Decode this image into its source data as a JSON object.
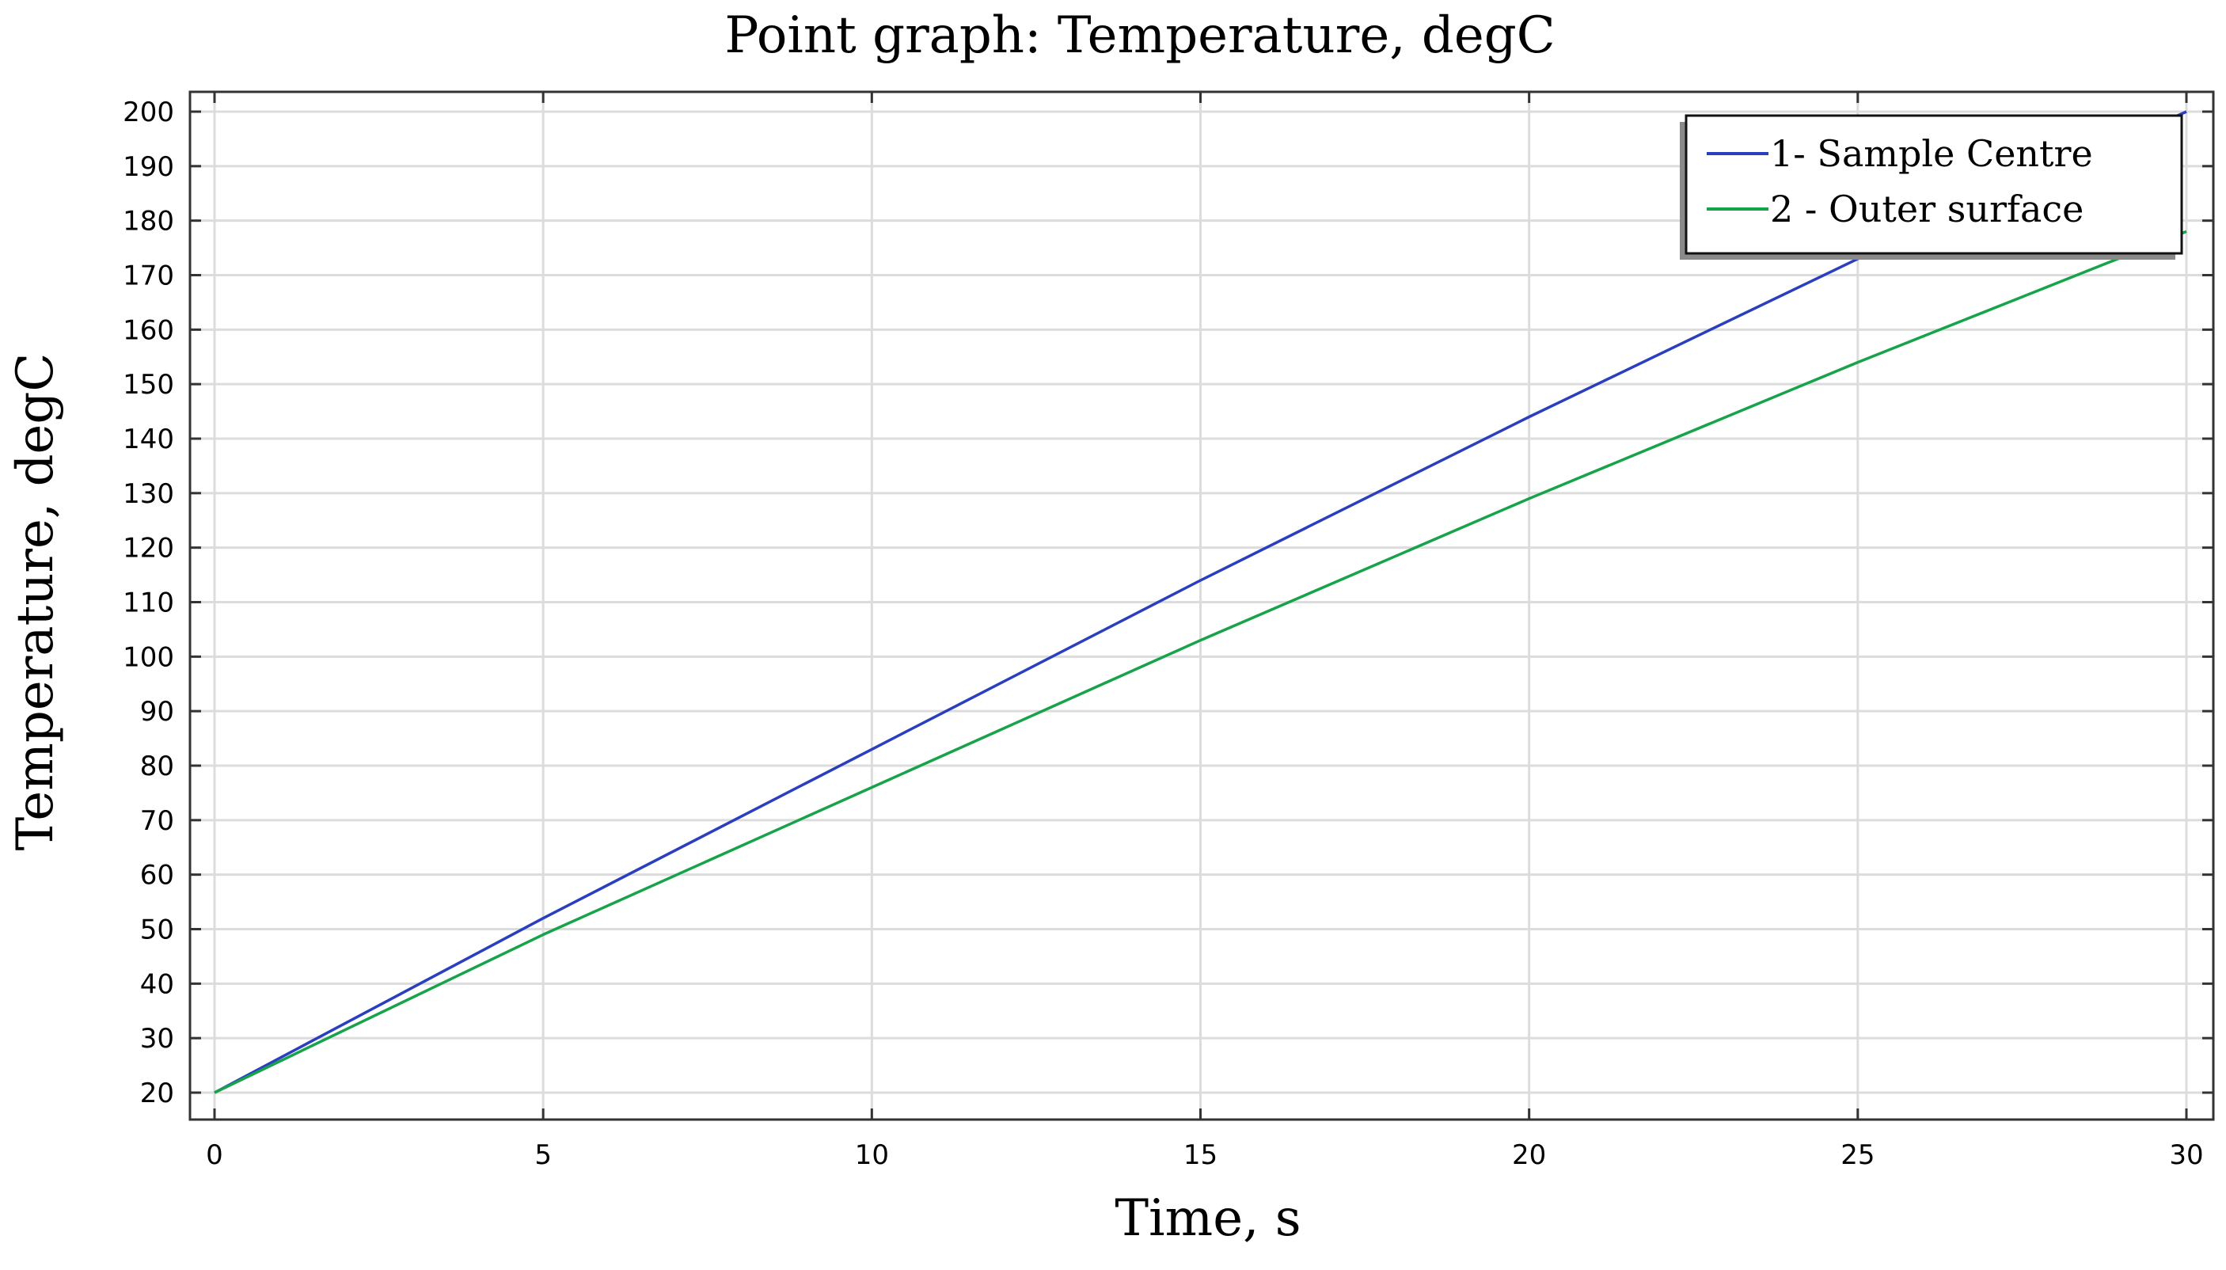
{
  "chart_data": {
    "type": "line",
    "title": "Point graph: Temperature, degC",
    "xlabel": "Time, s",
    "ylabel": "Temperature, degC",
    "xlim": [
      0,
      30
    ],
    "ylim": [
      20,
      200
    ],
    "xticks": [
      0,
      5,
      10,
      15,
      20,
      25,
      30
    ],
    "yticks": [
      20,
      30,
      40,
      50,
      60,
      70,
      80,
      90,
      100,
      110,
      120,
      130,
      140,
      150,
      160,
      170,
      180,
      190,
      200
    ],
    "grid": true,
    "legend_position": "top-right",
    "series": [
      {
        "name": "1- Sample Centre",
        "color": "#2a3fbf",
        "x": [
          0,
          5,
          10,
          15,
          20,
          25,
          30
        ],
        "y": [
          20,
          52,
          83,
          114,
          144,
          173,
          200
        ]
      },
      {
        "name": "2 - Outer surface",
        "color": "#16a34a",
        "x": [
          0,
          5,
          10,
          15,
          20,
          25,
          30
        ],
        "y": [
          20,
          49,
          76,
          103,
          129,
          154,
          178
        ]
      }
    ]
  }
}
